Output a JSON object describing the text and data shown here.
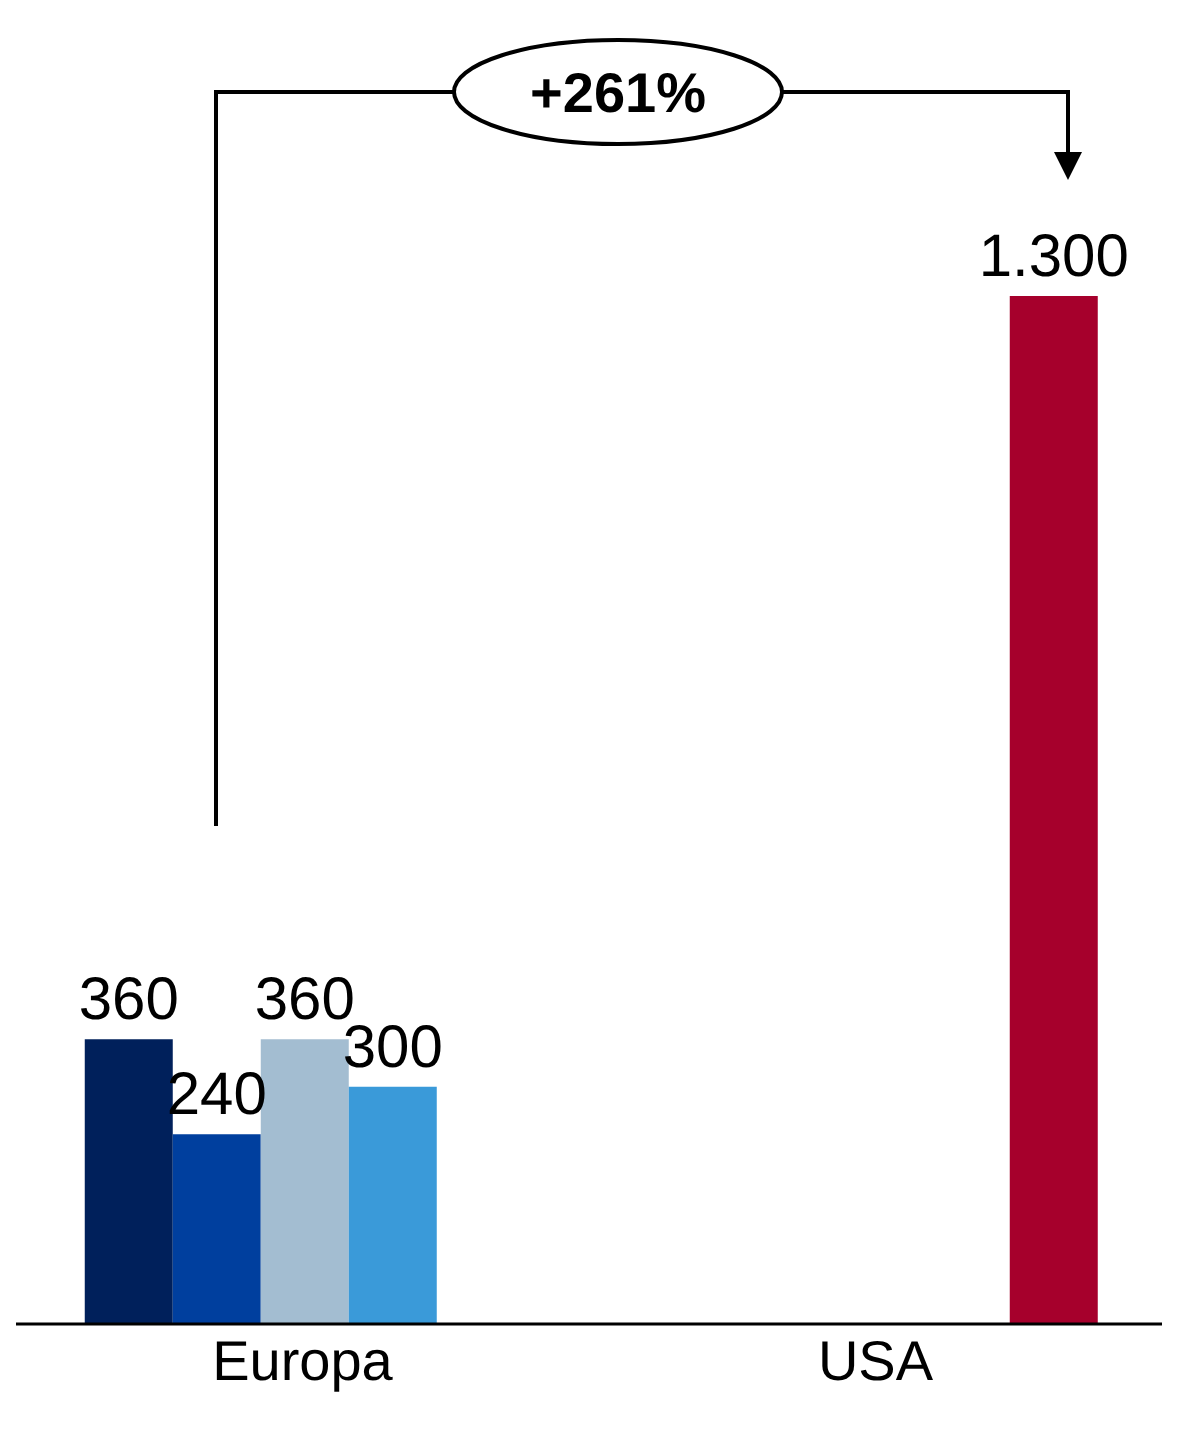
{
  "chart_data": {
    "type": "bar",
    "categories": [
      "Europa",
      "USA"
    ],
    "series": [
      {
        "color": "#00205b",
        "values": [
          360,
          null
        ],
        "value_labels": [
          "360",
          null
        ]
      },
      {
        "color": "#003f9e",
        "values": [
          240,
          null
        ],
        "value_labels": [
          "240",
          null
        ]
      },
      {
        "color": "#a3bdd1",
        "values": [
          360,
          null
        ],
        "value_labels": [
          "360",
          null
        ]
      },
      {
        "color": "#3a9ad9",
        "values": [
          300,
          null
        ],
        "value_labels": [
          "300",
          null
        ]
      },
      {
        "color": "#a6002c",
        "values": [
          null,
          1300
        ],
        "value_labels": [
          null,
          "1.300"
        ]
      }
    ],
    "annotations": [
      "+261%"
    ],
    "legend": false,
    "grid": false
  }
}
